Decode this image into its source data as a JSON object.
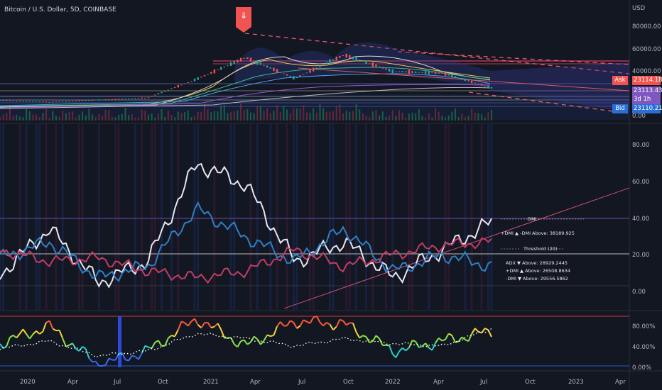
{
  "header": {
    "title": "Bitcoin / U.S. Dollar, 5D, COINBASE"
  },
  "price_scale": {
    "currency": "USD",
    "ticks": [
      "80000.00",
      "60000.00",
      "40000.00",
      "0.00"
    ]
  },
  "price_tags": {
    "ask_label": "Ask",
    "ask_value": "23114.18",
    "last_value": "23113.43",
    "countdown": "3d 1h",
    "bid_label": "Bid",
    "bid_value": "23110.21"
  },
  "colors": {
    "bg": "#131722",
    "ask": "#f05350",
    "bid": "#2a6fd6",
    "last": "#7e57c2",
    "dmi_plus": "#2f7fc4",
    "dmi_minus": "#c23d63",
    "adx": "#e8e8ee",
    "grid": "#3a3f4c"
  },
  "dmi_panel": {
    "y_ticks": [
      "80.00",
      "60.00",
      "40.00",
      "20.00",
      "0.00"
    ],
    "label_dmi": "DMI",
    "label_cross": "+DMI ▲ -DMI Above: 38189.925",
    "label_threshold": "Threshold (20)",
    "label_adx": "ADX ▼ Above: 28929.2445",
    "label_plus": "+DMI ▲ Above: 26508.8634",
    "label_minus": "-DMI ▼ Above: 29556.5862"
  },
  "osc_panel": {
    "y_ticks": [
      "80.00%",
      "40.00%",
      "0.00%"
    ]
  },
  "time_axis": {
    "labels": [
      "2020",
      "Apr",
      "Jul",
      "Oct",
      "2021",
      "Apr",
      "Jul",
      "Oct",
      "2022",
      "Apr",
      "Jul",
      "Oct",
      "2023",
      "Apr"
    ]
  },
  "chart_data": [
    {
      "type": "line",
      "title": "Bitcoin / U.S. Dollar, 5D, COINBASE",
      "x": [
        "2020-01",
        "2020-04",
        "2020-07",
        "2020-10",
        "2021-01",
        "2021-04",
        "2021-07",
        "2021-10",
        "2022-01",
        "2022-04",
        "2022-07"
      ],
      "series": [
        {
          "name": "Bitcoin / U.S. Dollar",
          "values": [
            8500,
            6800,
            9200,
            11500,
            33000,
            58000,
            34000,
            61000,
            42000,
            40000,
            23113
          ]
        }
      ],
      "ylim": [
        0,
        90000
      ]
    },
    {
      "type": "line",
      "x": [
        "2020-01",
        "2020-04",
        "2020-07",
        "2020-10",
        "2021-01",
        "2021-04",
        "2021-07",
        "2021-10",
        "2022-01",
        "2022-04",
        "2022-07"
      ],
      "series": [
        {
          "name": "ADX",
          "values": [
            10,
            38,
            5,
            18,
            78,
            65,
            18,
            30,
            8,
            25,
            42
          ]
        },
        {
          "name": "+DMI",
          "values": [
            20,
            30,
            8,
            15,
            50,
            33,
            18,
            38,
            12,
            22,
            15
          ]
        },
        {
          "name": "-DMI",
          "values": [
            25,
            18,
            20,
            12,
            8,
            12,
            25,
            15,
            22,
            28,
            30
          ]
        }
      ],
      "ylim": [
        -10,
        90
      ]
    },
    {
      "type": "line",
      "x": [
        "2020-01",
        "2020-04",
        "2020-07",
        "2020-10",
        "2021-01",
        "2021-04",
        "2021-07",
        "2021-10",
        "2022-01",
        "2022-04",
        "2022-07"
      ],
      "series": [
        {
          "values": [
            45,
            80,
            2,
            30,
            95,
            40,
            90,
            85,
            30,
            50,
            70
          ]
        },
        {
          "values": [
            35,
            50,
            20,
            30,
            65,
            55,
            40,
            55,
            45,
            40,
            75
          ]
        }
      ],
      "ylim": [
        0,
        100
      ]
    }
  ]
}
